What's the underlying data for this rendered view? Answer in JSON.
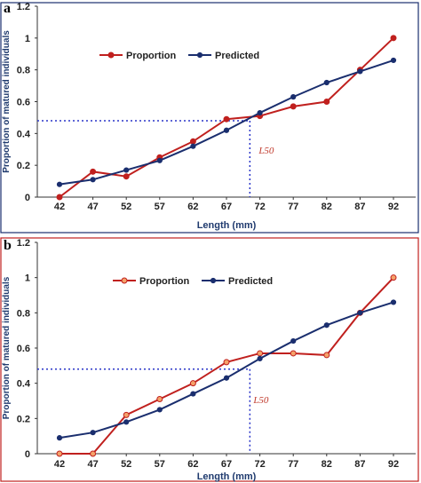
{
  "panel_labels": [
    "a",
    "b"
  ],
  "colors": {
    "proportion": "#c0201e",
    "predicted": "#1a2e6e",
    "guide": "#2a35c8",
    "frame_a": "#1a2e6e",
    "frame_b": "#c0201e",
    "marker_fill_b": "#f4a26a"
  },
  "chart_data": [
    {
      "type": "line",
      "panel": "a",
      "categories": [
        "42",
        "47",
        "52",
        "57",
        "62",
        "67",
        "72",
        "77",
        "82",
        "87",
        "92"
      ],
      "xlabel": "Length (mm)",
      "ylabel": "Proportion of matured individuals",
      "yticks": [
        "0",
        "0.2",
        "0.4",
        "0.6",
        "0.8",
        "1",
        "1.2"
      ],
      "ylim": [
        0,
        1.2
      ],
      "legend_position": "top-left",
      "series": [
        {
          "name": "Proportion",
          "values": [
            0.0,
            0.16,
            0.13,
            0.25,
            0.35,
            0.49,
            0.51,
            0.57,
            0.6,
            0.8,
            1.0
          ]
        },
        {
          "name": "Predicted",
          "values": [
            0.08,
            0.11,
            0.17,
            0.23,
            0.32,
            0.42,
            0.53,
            0.63,
            0.72,
            0.79,
            0.86
          ]
        }
      ],
      "annotation": {
        "text": "L50",
        "x": 70.5,
        "y": 0.48
      }
    },
    {
      "type": "line",
      "panel": "b",
      "categories": [
        "42",
        "47",
        "52",
        "57",
        "62",
        "67",
        "72",
        "77",
        "82",
        "87",
        "92"
      ],
      "xlabel": "Length (mm)",
      "ylabel": "Proportion of matured individuals",
      "yticks": [
        "0",
        "0.2",
        "0.4",
        "0.6",
        "0.8",
        "1",
        "1.2"
      ],
      "ylim": [
        0,
        1.2
      ],
      "legend_position": "top-left",
      "series": [
        {
          "name": "Proportion",
          "values": [
            0.0,
            0.0,
            0.22,
            0.31,
            0.4,
            0.52,
            0.57,
            0.57,
            0.56,
            0.8,
            1.0
          ]
        },
        {
          "name": "Predicted",
          "values": [
            0.09,
            0.12,
            0.18,
            0.25,
            0.34,
            0.43,
            0.54,
            0.64,
            0.73,
            0.8,
            0.86
          ]
        }
      ],
      "annotation": {
        "text": "L50",
        "x": 70.5,
        "y": 0.48
      }
    }
  ]
}
